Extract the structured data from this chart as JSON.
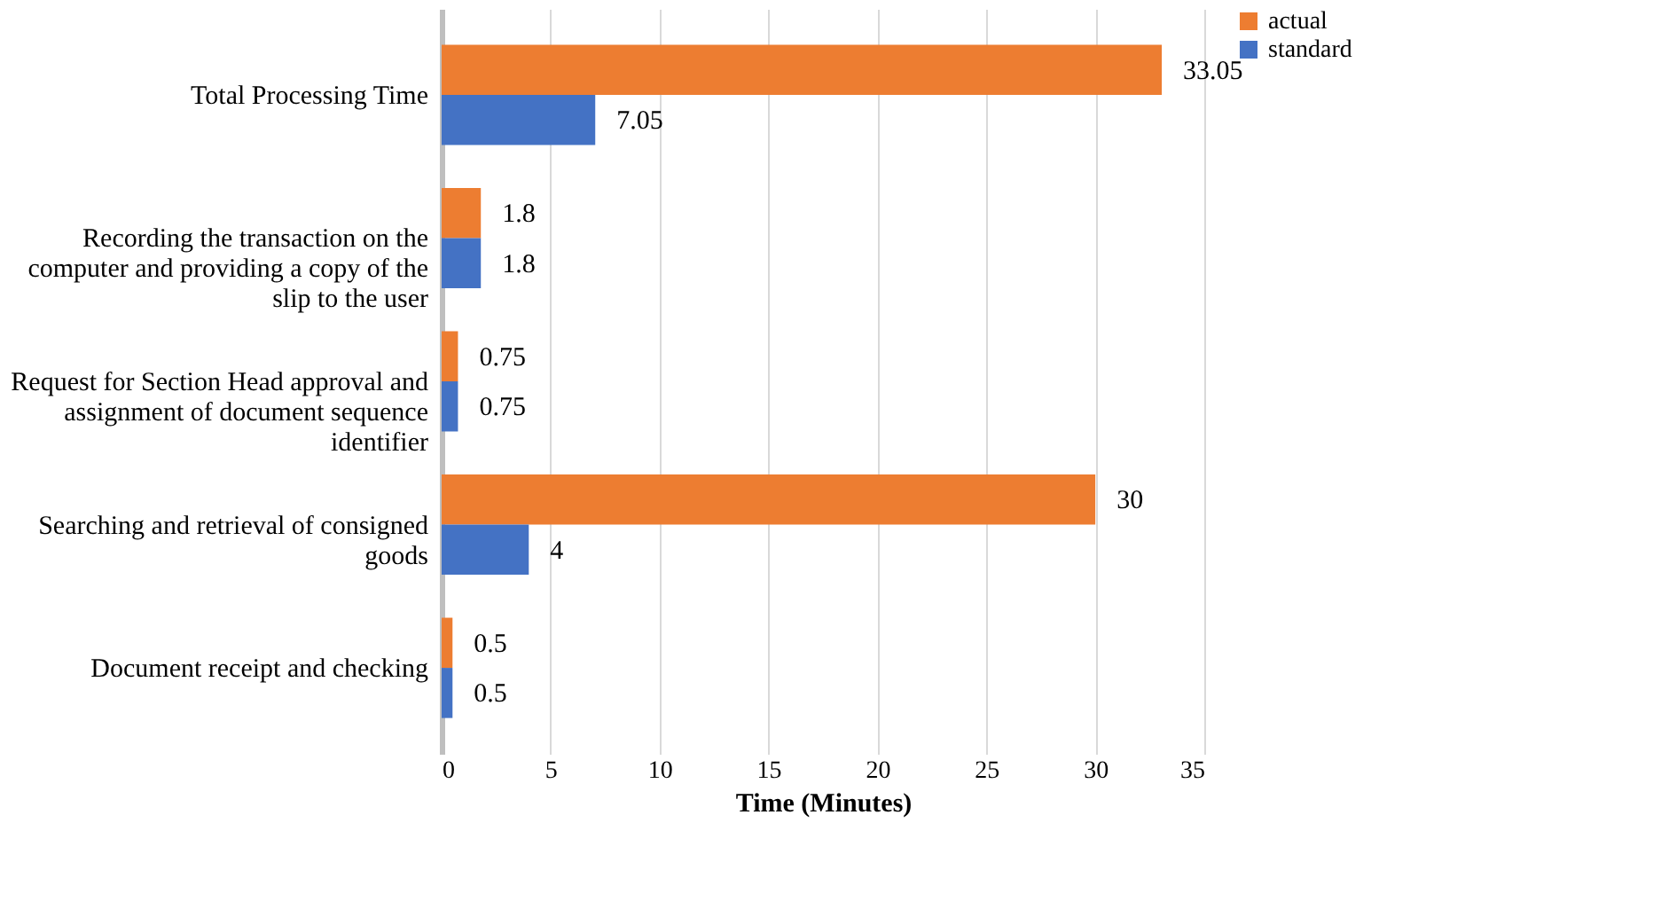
{
  "chart_data": {
    "type": "bar",
    "orientation": "horizontal",
    "xlabel": "Time (Minutes)",
    "categories": [
      "Total Processing Time",
      "Recording the transaction on the computer and providing a copy of the slip to the user",
      "Request for Section Head approval and assignment of document sequence identifier",
      "Searching and retrieval of consigned goods",
      "Document receipt and checking"
    ],
    "series": [
      {
        "name": "actual",
        "color": "#ed7d31",
        "values": [
          33.05,
          1.8,
          0.75,
          30,
          0.5
        ]
      },
      {
        "name": "standard",
        "color": "#4472c4",
        "values": [
          7.05,
          1.8,
          0.75,
          4,
          0.5
        ]
      }
    ],
    "xlim": [
      0,
      35
    ],
    "xticks": [
      0,
      5,
      10,
      15,
      20,
      25,
      30,
      35
    ],
    "grid": "x",
    "legend": "right",
    "data_labels": true
  }
}
